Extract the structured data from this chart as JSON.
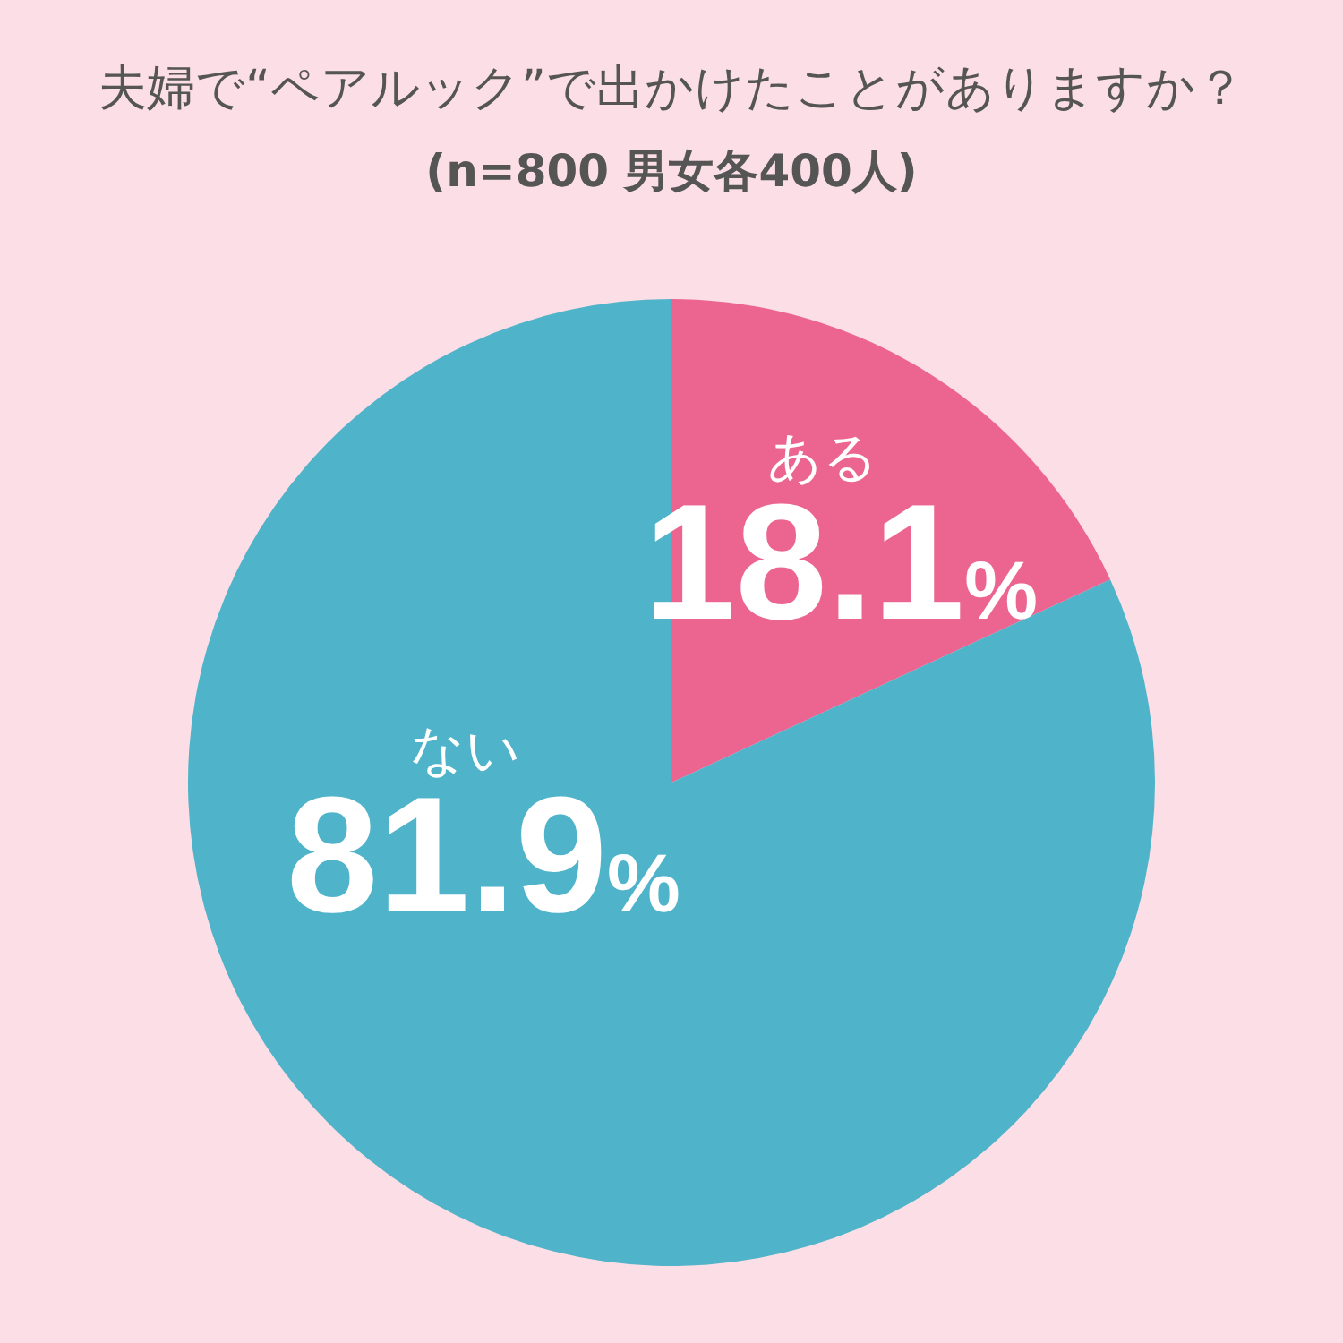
{
  "chart_data": {
    "type": "pie",
    "title": "夫婦で“ペアルック”で出かけたことがありますか？",
    "subtitle": "(n=800 男女各400人)",
    "categories": [
      "ある",
      "ない"
    ],
    "values": [
      18.1,
      81.9
    ],
    "colors": [
      "#ec6591",
      "#4fb3c9"
    ],
    "value_labels": [
      "18.1%",
      "81.9%"
    ]
  }
}
